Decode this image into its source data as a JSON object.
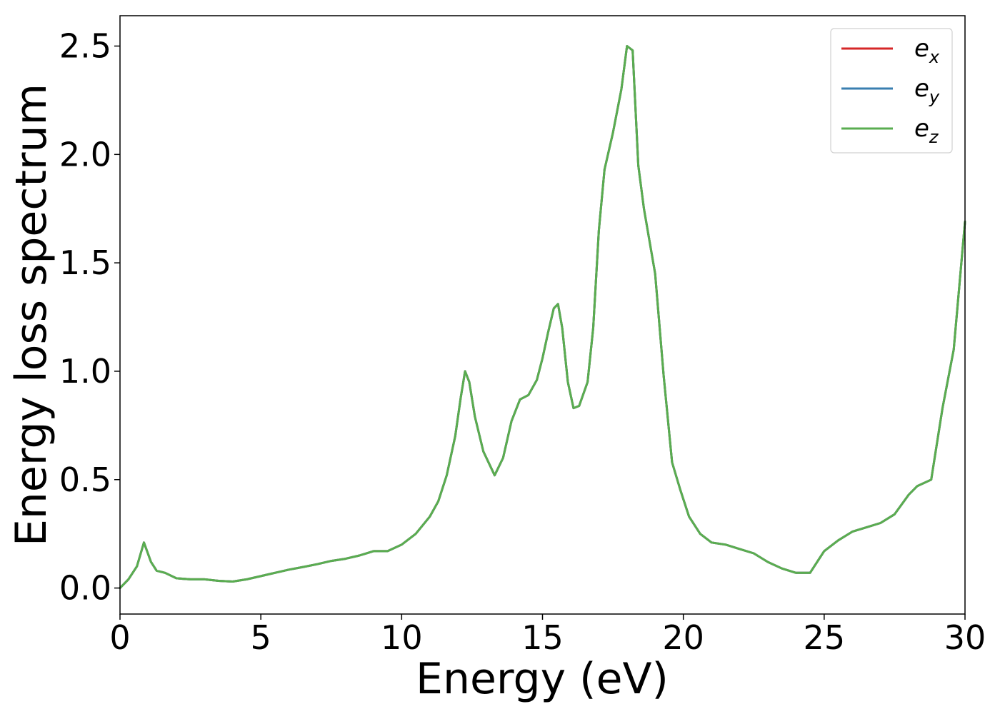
{
  "chart_data": {
    "type": "line",
    "title": "",
    "xlabel": "Energy (eV)",
    "ylabel": "Energy loss spectrum",
    "xlim": [
      0,
      30
    ],
    "ylim": [
      -0.12,
      2.64
    ],
    "xticks": [
      0,
      5,
      10,
      15,
      20,
      25,
      30
    ],
    "xtick_labels": [
      "0",
      "5",
      "10",
      "15",
      "20",
      "25",
      "30"
    ],
    "yticks": [
      0.0,
      0.5,
      1.0,
      1.5,
      2.0,
      2.5
    ],
    "ytick_labels": [
      "0.0",
      "0.5",
      "1.0",
      "1.5",
      "2.0",
      "2.5"
    ],
    "grid": false,
    "legend_position": "top-right",
    "x": [
      0,
      0.3,
      0.6,
      0.85,
      1.1,
      1.3,
      1.6,
      2.0,
      2.5,
      3.0,
      3.5,
      4.0,
      4.5,
      5.0,
      5.5,
      6.0,
      6.5,
      7.0,
      7.5,
      8.0,
      8.5,
      9.0,
      9.5,
      10.0,
      10.5,
      11.0,
      11.3,
      11.6,
      11.9,
      12.1,
      12.25,
      12.4,
      12.6,
      12.9,
      13.3,
      13.6,
      13.9,
      14.2,
      14.5,
      14.8,
      15.0,
      15.2,
      15.4,
      15.55,
      15.7,
      15.9,
      16.1,
      16.3,
      16.6,
      16.8,
      17.0,
      17.2,
      17.5,
      17.8,
      18.0,
      18.2,
      18.4,
      18.6,
      19.0,
      19.3,
      19.6,
      19.9,
      20.2,
      20.6,
      21.0,
      21.5,
      22.0,
      22.5,
      23.0,
      23.5,
      24.0,
      24.5,
      25.0,
      25.5,
      26.0,
      26.5,
      27.0,
      27.5,
      28.0,
      28.3,
      28.8,
      29.2,
      29.6,
      30.0
    ],
    "series": [
      {
        "name": "e_x",
        "label_base": "e",
        "label_sub": "x",
        "color": "#d62728",
        "values": [
          0.0,
          0.04,
          0.1,
          0.21,
          0.12,
          0.08,
          0.07,
          0.045,
          0.04,
          0.04,
          0.033,
          0.03,
          0.04,
          0.055,
          0.07,
          0.085,
          0.097,
          0.11,
          0.125,
          0.135,
          0.15,
          0.17,
          0.17,
          0.2,
          0.25,
          0.33,
          0.4,
          0.52,
          0.7,
          0.88,
          1.0,
          0.95,
          0.79,
          0.63,
          0.52,
          0.6,
          0.77,
          0.87,
          0.89,
          0.96,
          1.06,
          1.18,
          1.29,
          1.31,
          1.2,
          0.95,
          0.83,
          0.84,
          0.95,
          1.2,
          1.65,
          1.93,
          2.1,
          2.3,
          2.5,
          2.48,
          1.95,
          1.75,
          1.45,
          0.98,
          0.58,
          0.45,
          0.33,
          0.25,
          0.21,
          0.2,
          0.18,
          0.16,
          0.12,
          0.09,
          0.07,
          0.07,
          0.17,
          0.22,
          0.26,
          0.28,
          0.3,
          0.34,
          0.43,
          0.47,
          0.5,
          0.83,
          1.1,
          1.69
        ]
      },
      {
        "name": "e_y",
        "label_base": "e",
        "label_sub": "y",
        "color": "#3a7fb0",
        "values": [
          0.0,
          0.04,
          0.1,
          0.21,
          0.12,
          0.08,
          0.07,
          0.045,
          0.04,
          0.04,
          0.033,
          0.03,
          0.04,
          0.055,
          0.07,
          0.085,
          0.097,
          0.11,
          0.125,
          0.135,
          0.15,
          0.17,
          0.17,
          0.2,
          0.25,
          0.33,
          0.4,
          0.52,
          0.7,
          0.88,
          1.0,
          0.95,
          0.79,
          0.63,
          0.52,
          0.6,
          0.77,
          0.87,
          0.89,
          0.96,
          1.06,
          1.18,
          1.29,
          1.31,
          1.2,
          0.95,
          0.83,
          0.84,
          0.95,
          1.2,
          1.65,
          1.93,
          2.1,
          2.3,
          2.5,
          2.48,
          1.95,
          1.75,
          1.45,
          0.98,
          0.58,
          0.45,
          0.33,
          0.25,
          0.21,
          0.2,
          0.18,
          0.16,
          0.12,
          0.09,
          0.07,
          0.07,
          0.17,
          0.22,
          0.26,
          0.28,
          0.3,
          0.34,
          0.43,
          0.47,
          0.5,
          0.83,
          1.1,
          1.69
        ]
      },
      {
        "name": "e_z",
        "label_base": "e",
        "label_sub": "z",
        "color": "#5aad50",
        "values": [
          0.0,
          0.04,
          0.1,
          0.21,
          0.12,
          0.08,
          0.07,
          0.045,
          0.04,
          0.04,
          0.033,
          0.03,
          0.04,
          0.055,
          0.07,
          0.085,
          0.097,
          0.11,
          0.125,
          0.135,
          0.15,
          0.17,
          0.17,
          0.2,
          0.25,
          0.33,
          0.4,
          0.52,
          0.7,
          0.88,
          1.0,
          0.95,
          0.79,
          0.63,
          0.52,
          0.6,
          0.77,
          0.87,
          0.89,
          0.96,
          1.06,
          1.18,
          1.29,
          1.31,
          1.2,
          0.95,
          0.83,
          0.84,
          0.95,
          1.2,
          1.65,
          1.93,
          2.1,
          2.3,
          2.5,
          2.48,
          1.95,
          1.75,
          1.45,
          0.98,
          0.58,
          0.45,
          0.33,
          0.25,
          0.21,
          0.2,
          0.18,
          0.16,
          0.12,
          0.09,
          0.07,
          0.07,
          0.17,
          0.22,
          0.26,
          0.28,
          0.3,
          0.34,
          0.43,
          0.47,
          0.5,
          0.83,
          1.1,
          1.69
        ]
      }
    ]
  }
}
